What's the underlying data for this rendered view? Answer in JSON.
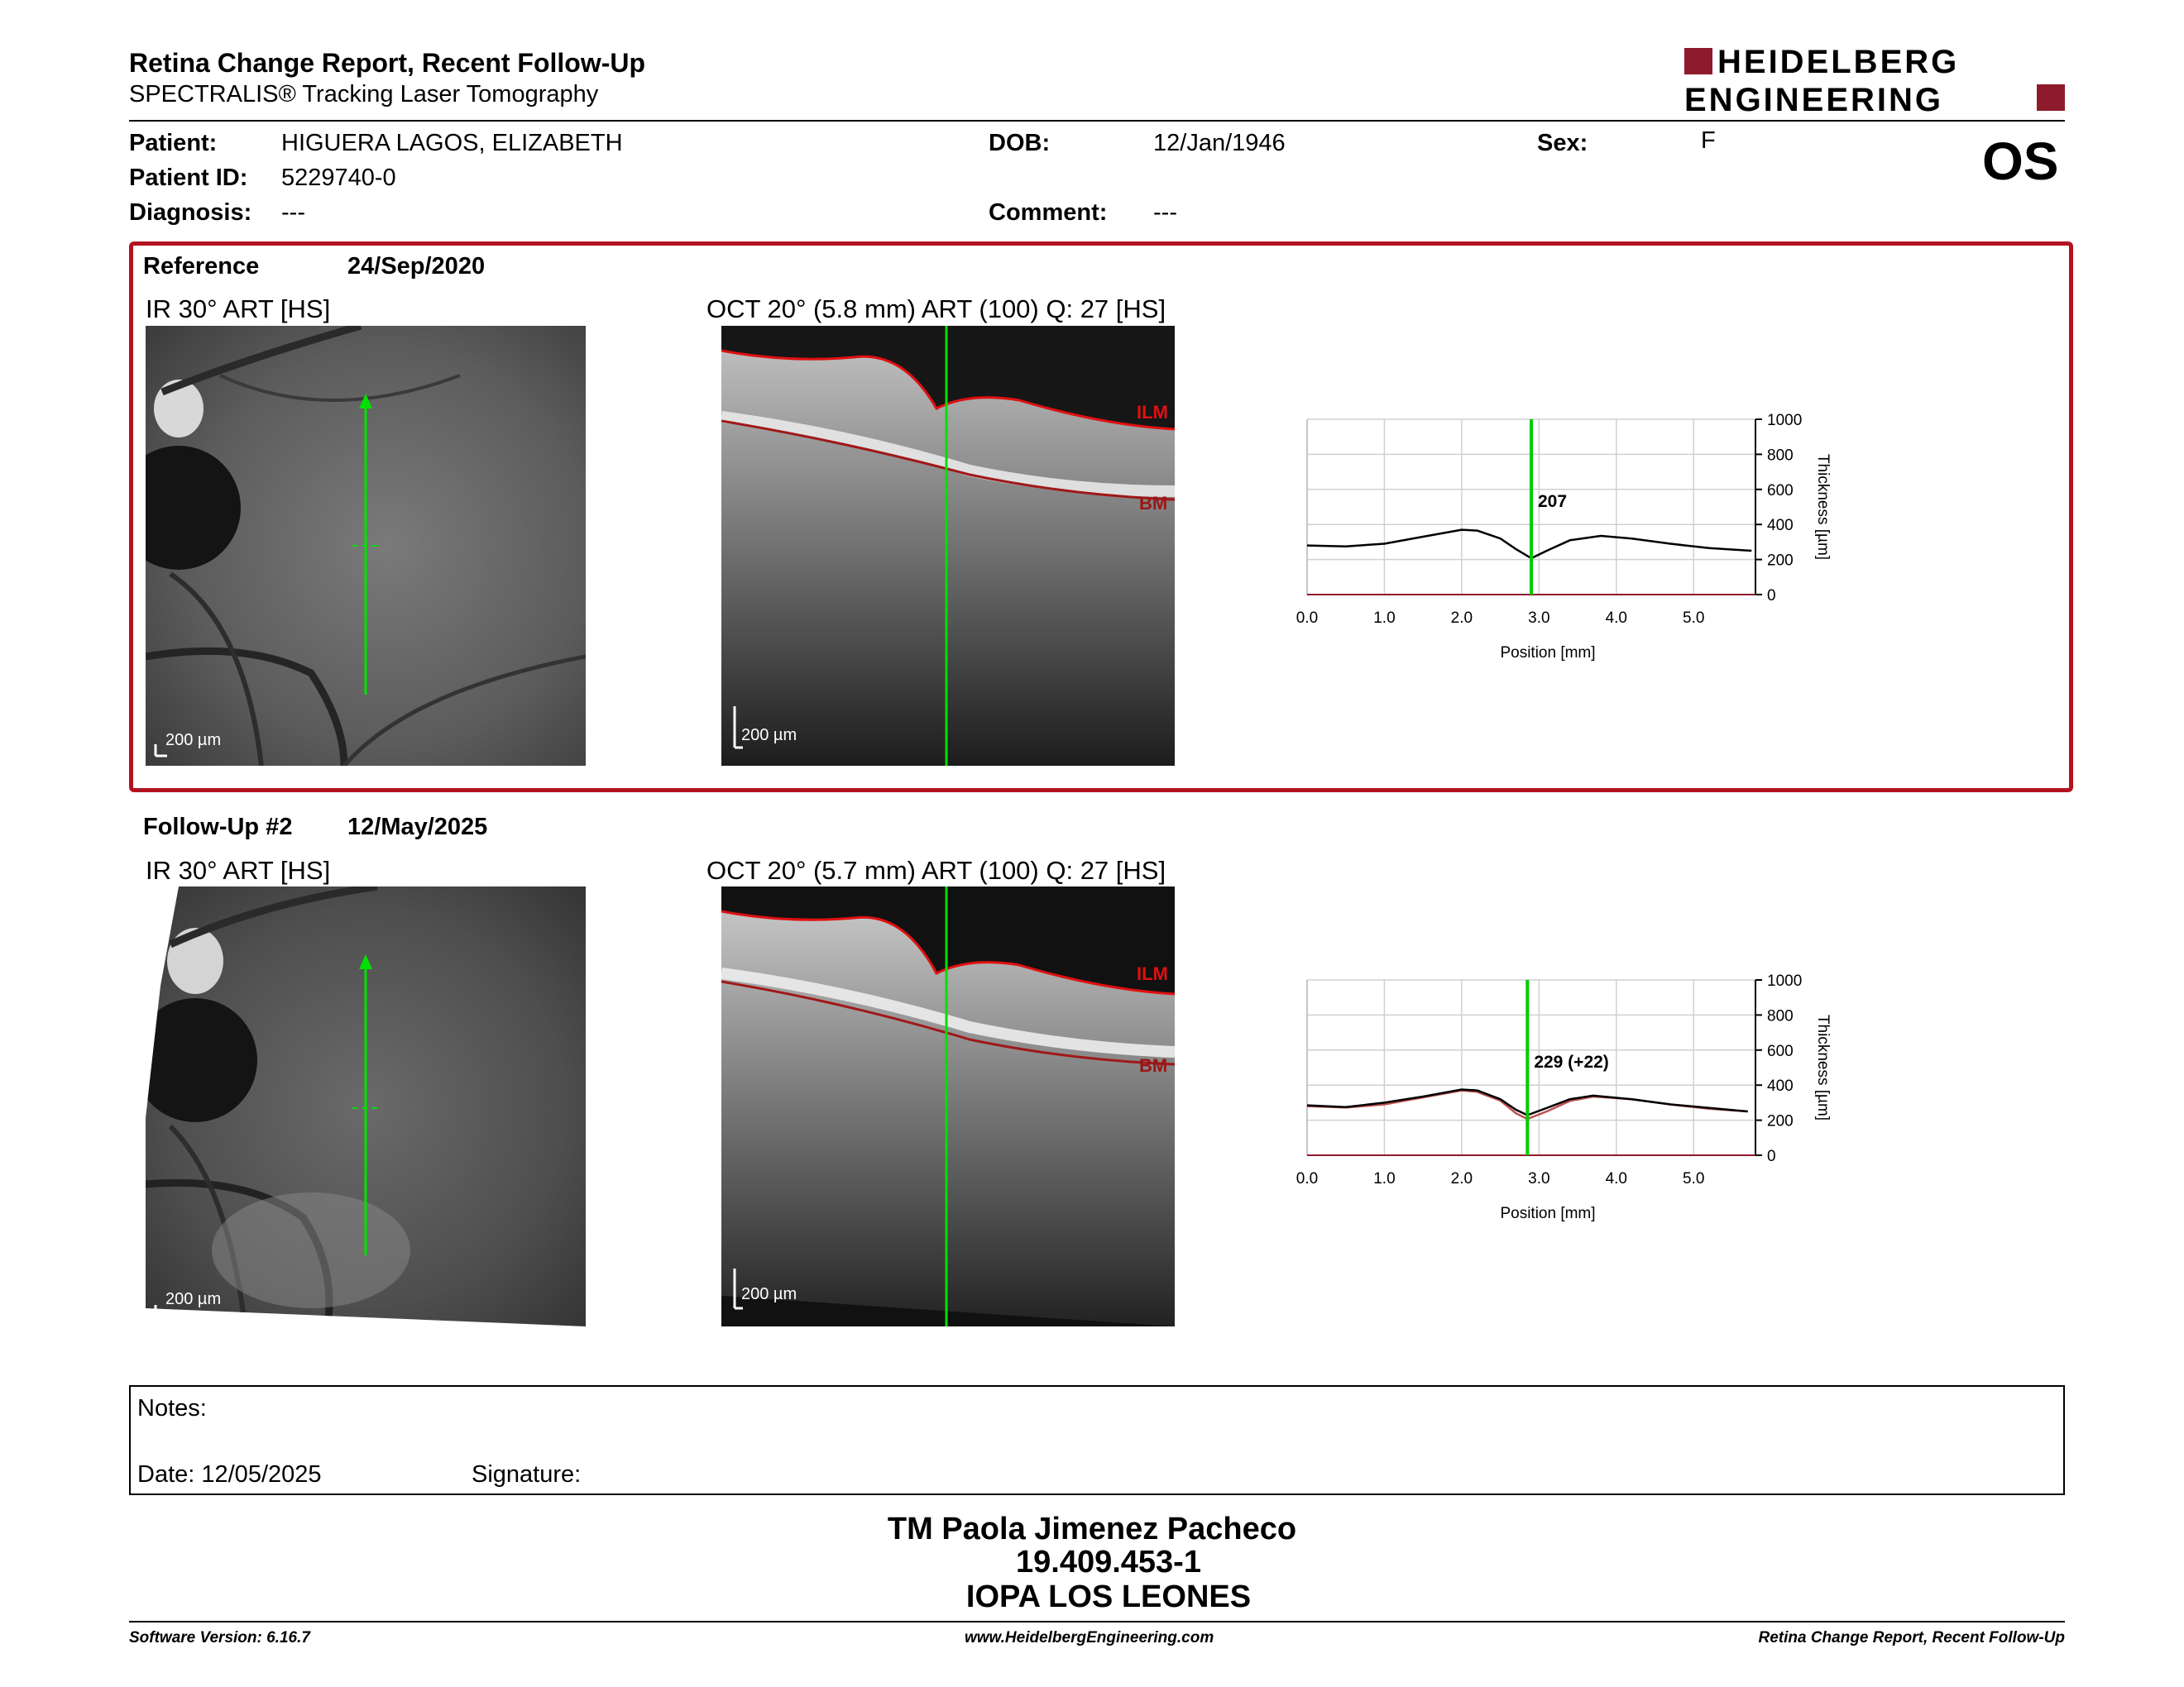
{
  "header": {
    "title": "Retina Change Report, Recent Follow-Up",
    "subtitle": "SPECTRALIS® Tracking Laser Tomography",
    "logo_line1": "HEIDELBERG",
    "logo_line2": "ENGINEERING",
    "eye": "OS"
  },
  "patient": {
    "name_label": "Patient:",
    "name": "HIGUERA LAGOS, ELIZABETH",
    "id_label": "Patient ID:",
    "id": "5229740-0",
    "diagnosis_label": "Diagnosis:",
    "diagnosis": "---",
    "dob_label": "DOB:",
    "dob": "12/Jan/1946",
    "comment_label": "Comment:",
    "comment": "---",
    "sex_label": "Sex:",
    "sex": "F"
  },
  "reference": {
    "label": "Reference",
    "date": "24/Sep/2020",
    "ir_title": "IR 30° ART [HS]",
    "oct_title": "OCT 20° (5.8 mm) ART (100) Q: 27 [HS]",
    "ir_scale": "200 µm",
    "oct_scale": "200 µm",
    "ilm": "ILM",
    "bm": "BM"
  },
  "followup": {
    "label": "Follow-Up #2",
    "date": "12/May/2025",
    "ir_title": "IR 30° ART [HS]",
    "oct_title": "OCT 20° (5.7 mm) ART (100) Q: 27 [HS]",
    "ir_scale": "200 µm",
    "oct_scale": "200 µm",
    "ilm": "ILM",
    "bm": "BM"
  },
  "chart_data": [
    {
      "type": "line",
      "xlabel": "Position [mm]",
      "ylabel": "Thickness [µm]",
      "xlim": [
        0,
        5.8
      ],
      "ylim": [
        0,
        1000
      ],
      "xticks": [
        "0.0",
        "1.0",
        "2.0",
        "3.0",
        "4.0",
        "5.0"
      ],
      "yticks": [
        "0",
        "200",
        "400",
        "600",
        "800",
        "1000"
      ],
      "grid": true,
      "marker_x": 2.9,
      "marker_label": "207",
      "series": [
        {
          "color": "#000000",
          "x": [
            0,
            0.5,
            1.0,
            1.5,
            2.0,
            2.2,
            2.5,
            2.7,
            2.9,
            3.1,
            3.4,
            3.8,
            4.2,
            4.7,
            5.2,
            5.75
          ],
          "y": [
            280,
            275,
            290,
            330,
            370,
            365,
            320,
            260,
            207,
            250,
            310,
            335,
            320,
            290,
            265,
            250
          ]
        }
      ]
    },
    {
      "type": "line",
      "xlabel": "Position [mm]",
      "ylabel": "Thickness [µm]",
      "xlim": [
        0,
        5.8
      ],
      "ylim": [
        0,
        1000
      ],
      "xticks": [
        "0.0",
        "1.0",
        "2.0",
        "3.0",
        "4.0",
        "5.0"
      ],
      "yticks": [
        "0",
        "200",
        "400",
        "600",
        "800",
        "1000"
      ],
      "grid": true,
      "marker_x": 2.85,
      "marker_label": "229 (+22)",
      "series": [
        {
          "color": "#000000",
          "x": [
            0,
            0.5,
            1.0,
            1.5,
            2.0,
            2.2,
            2.5,
            2.7,
            2.85,
            3.1,
            3.4,
            3.7,
            4.2,
            4.7,
            5.2,
            5.7
          ],
          "y": [
            285,
            275,
            300,
            335,
            375,
            370,
            320,
            260,
            229,
            270,
            320,
            340,
            320,
            290,
            270,
            250
          ]
        },
        {
          "color": "#c0504d",
          "x": [
            0,
            0.5,
            1.0,
            1.5,
            2.0,
            2.2,
            2.5,
            2.7,
            2.85,
            3.1,
            3.4,
            3.7,
            4.2,
            4.7,
            5.2,
            5.7
          ],
          "y": [
            280,
            272,
            290,
            330,
            370,
            362,
            312,
            240,
            207,
            250,
            310,
            335,
            320,
            290,
            265,
            250
          ]
        }
      ]
    }
  ],
  "notes": {
    "notes_label": "Notes:",
    "date_label": "Date: 12/05/2025",
    "signature_label": "Signature:"
  },
  "signature": {
    "name": "TM Paola Jimenez Pacheco",
    "rut": "19.409.453-1",
    "place": "IOPA LOS LEONES"
  },
  "footer": {
    "software": "Software Version: 6.16.7",
    "url": "www.HeidelbergEngineering.com",
    "report": "Retina Change Report, Recent Follow-Up"
  },
  "colors": {
    "accent": "#b3121f",
    "scan_line": "#00e000",
    "ilm": "#e01010"
  }
}
